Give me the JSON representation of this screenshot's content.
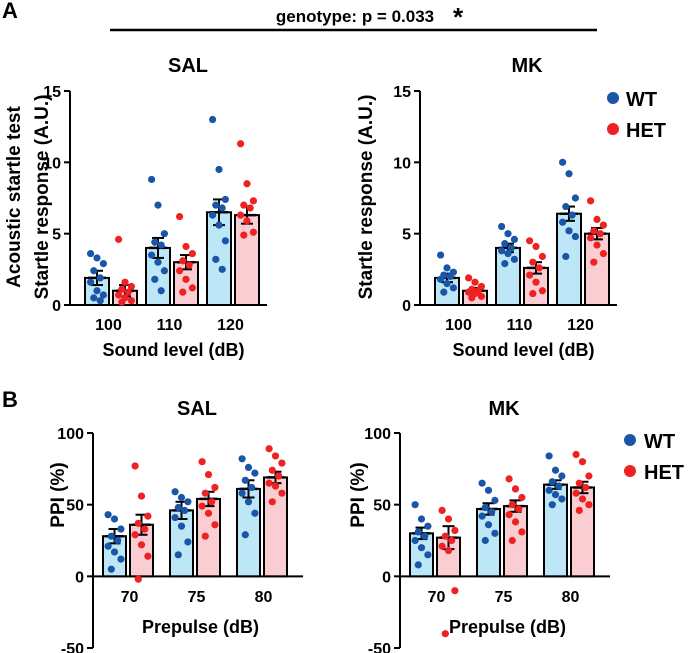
{
  "panel_labels": [
    "A",
    "B"
  ],
  "annotation": {
    "text": "genotype: p = 0.033",
    "star": "*"
  },
  "legend": [
    {
      "name": "WT",
      "color": "#1a56a8"
    },
    {
      "name": "HET",
      "color": "#ee2222"
    }
  ],
  "colors": {
    "wt_fill": "#bde6f7",
    "het_fill": "#f9cdd2",
    "wt_dot": "#1a56a8",
    "het_dot": "#ee2222"
  },
  "chart_data": [
    {
      "id": "A-SAL",
      "type": "bar",
      "title": "SAL",
      "ylabel": "Acoustic startle test",
      "ylabel2": "Startle response (A.U.)",
      "xlabel": "Sound level (dB)",
      "ylim": [
        0,
        15
      ],
      "yticks": [
        "0",
        "5",
        "10",
        "15"
      ],
      "categories": [
        "100",
        "110",
        "120"
      ],
      "series": [
        {
          "name": "WT",
          "values": [
            1.9,
            4.0,
            6.5
          ],
          "sem": [
            0.5,
            0.7,
            0.9
          ],
          "points": [
            [
              3.6,
              3.3,
              2.9,
              2.4,
              1.9,
              1.6,
              1.0,
              0.7,
              0.5,
              0.3
            ],
            [
              8.8,
              7.0,
              5.0,
              4.4,
              4.2,
              3.5,
              3.0,
              2.4,
              1.8,
              1.0
            ],
            [
              13.0,
              9.5,
              7.4,
              7.0,
              6.8,
              6.3,
              5.6,
              4.5,
              3.2,
              2.5
            ]
          ]
        },
        {
          "name": "HET",
          "values": [
            1.0,
            3.0,
            6.3
          ],
          "sem": [
            0.4,
            0.5,
            0.6
          ],
          "points": [
            [
              4.6,
              1.6,
              1.3,
              1.1,
              0.9,
              0.7,
              0.5,
              0.3,
              0.2
            ],
            [
              6.2,
              4.1,
              3.6,
              3.1,
              2.8,
              2.4,
              1.8,
              1.2,
              0.9
            ],
            [
              11.3,
              8.5,
              7.3,
              7.0,
              6.8,
              6.3,
              5.9,
              5.1,
              4.9
            ]
          ]
        }
      ]
    },
    {
      "id": "A-MK",
      "type": "bar",
      "title": "MK",
      "ylabel": "Startle response (A.U.)",
      "xlabel": "Sound level (dB)",
      "ylim": [
        0,
        15
      ],
      "yticks": [
        "0",
        "5",
        "10",
        "15"
      ],
      "categories": [
        "100",
        "110",
        "120"
      ],
      "series": [
        {
          "name": "WT",
          "values": [
            1.9,
            4.0,
            6.4
          ],
          "sem": [
            0.3,
            0.3,
            0.5
          ],
          "points": [
            [
              3.5,
              2.6,
              2.3,
              2.1,
              2.0,
              1.8,
              1.5,
              1.2,
              0.9
            ],
            [
              5.5,
              5.0,
              4.6,
              4.3,
              4.0,
              3.8,
              3.6,
              3.2,
              2.9
            ],
            [
              10.0,
              9.2,
              7.5,
              6.9,
              6.3,
              5.8,
              5.2,
              4.8,
              3.4
            ]
          ]
        },
        {
          "name": "HET",
          "values": [
            1.0,
            2.6,
            5.0
          ],
          "sem": [
            0.2,
            0.4,
            0.4
          ],
          "points": [
            [
              1.9,
              1.6,
              1.3,
              1.1,
              1.0,
              0.9,
              0.8,
              0.6,
              0.5
            ],
            [
              4.5,
              4.1,
              3.4,
              3.0,
              2.6,
              2.1,
              1.6,
              1.0,
              0.8
            ],
            [
              7.3,
              6.0,
              5.6,
              5.2,
              5.0,
              4.7,
              4.2,
              3.6,
              3.0
            ]
          ]
        }
      ]
    },
    {
      "id": "B-SAL",
      "type": "bar",
      "title": "SAL",
      "ylabel": "PPI (%)",
      "xlabel": "Prepulse (dB)",
      "ylim": [
        -50,
        100
      ],
      "yticks": [
        "-50",
        "0",
        "50",
        "100"
      ],
      "categories": [
        "70",
        "75",
        "80"
      ],
      "series": [
        {
          "name": "WT",
          "values": [
            28,
            46,
            61
          ],
          "sem": [
            5,
            6,
            6
          ],
          "points": [
            [
              43,
              40,
              33,
              28,
              25,
              21,
              17,
              12,
              5
            ],
            [
              59,
              55,
              52,
              48,
              46,
              41,
              35,
              24,
              15
            ],
            [
              82,
              76,
              72,
              67,
              62,
              58,
              52,
              44,
              29
            ]
          ]
        },
        {
          "name": "HET",
          "values": [
            36,
            54,
            69
          ],
          "sem": [
            7,
            5,
            4
          ],
          "points": [
            [
              77,
              56,
              42,
              37,
              33,
              29,
              22,
              14,
              -2
            ],
            [
              80,
              71,
              62,
              58,
              52,
              49,
              44,
              36,
              28
            ],
            [
              89,
              84,
              79,
              74,
              70,
              65,
              63,
              58,
              52
            ]
          ]
        }
      ]
    },
    {
      "id": "B-MK",
      "type": "bar",
      "title": "MK",
      "ylabel": "PPI (%)",
      "xlabel": "Prepulse (dB)",
      "ylim": [
        -50,
        100
      ],
      "yticks": [
        "-50",
        "0",
        "50",
        "100"
      ],
      "categories": [
        "70",
        "75",
        "80"
      ],
      "series": [
        {
          "name": "WT",
          "values": [
            30,
            47,
            64
          ],
          "sem": [
            4,
            4,
            3
          ],
          "points": [
            [
              50,
              40,
              35,
              31,
              28,
              25,
              20,
              15,
              8
            ],
            [
              65,
              60,
              53,
              48,
              45,
              42,
              36,
              30,
              25
            ],
            [
              84,
              74,
              70,
              66,
              63,
              60,
              57,
              54,
              50
            ]
          ]
        },
        {
          "name": "HET",
          "values": [
            27,
            49,
            62
          ],
          "sem": [
            8,
            4,
            4
          ],
          "points": [
            [
              46,
              40,
              32,
              28,
              25,
              21,
              18,
              -10,
              -40
            ],
            [
              68,
              61,
              55,
              50,
              47,
              43,
              38,
              31,
              25
            ],
            [
              85,
              80,
              70,
              65,
              62,
              58,
              54,
              50,
              46
            ]
          ]
        }
      ]
    }
  ]
}
